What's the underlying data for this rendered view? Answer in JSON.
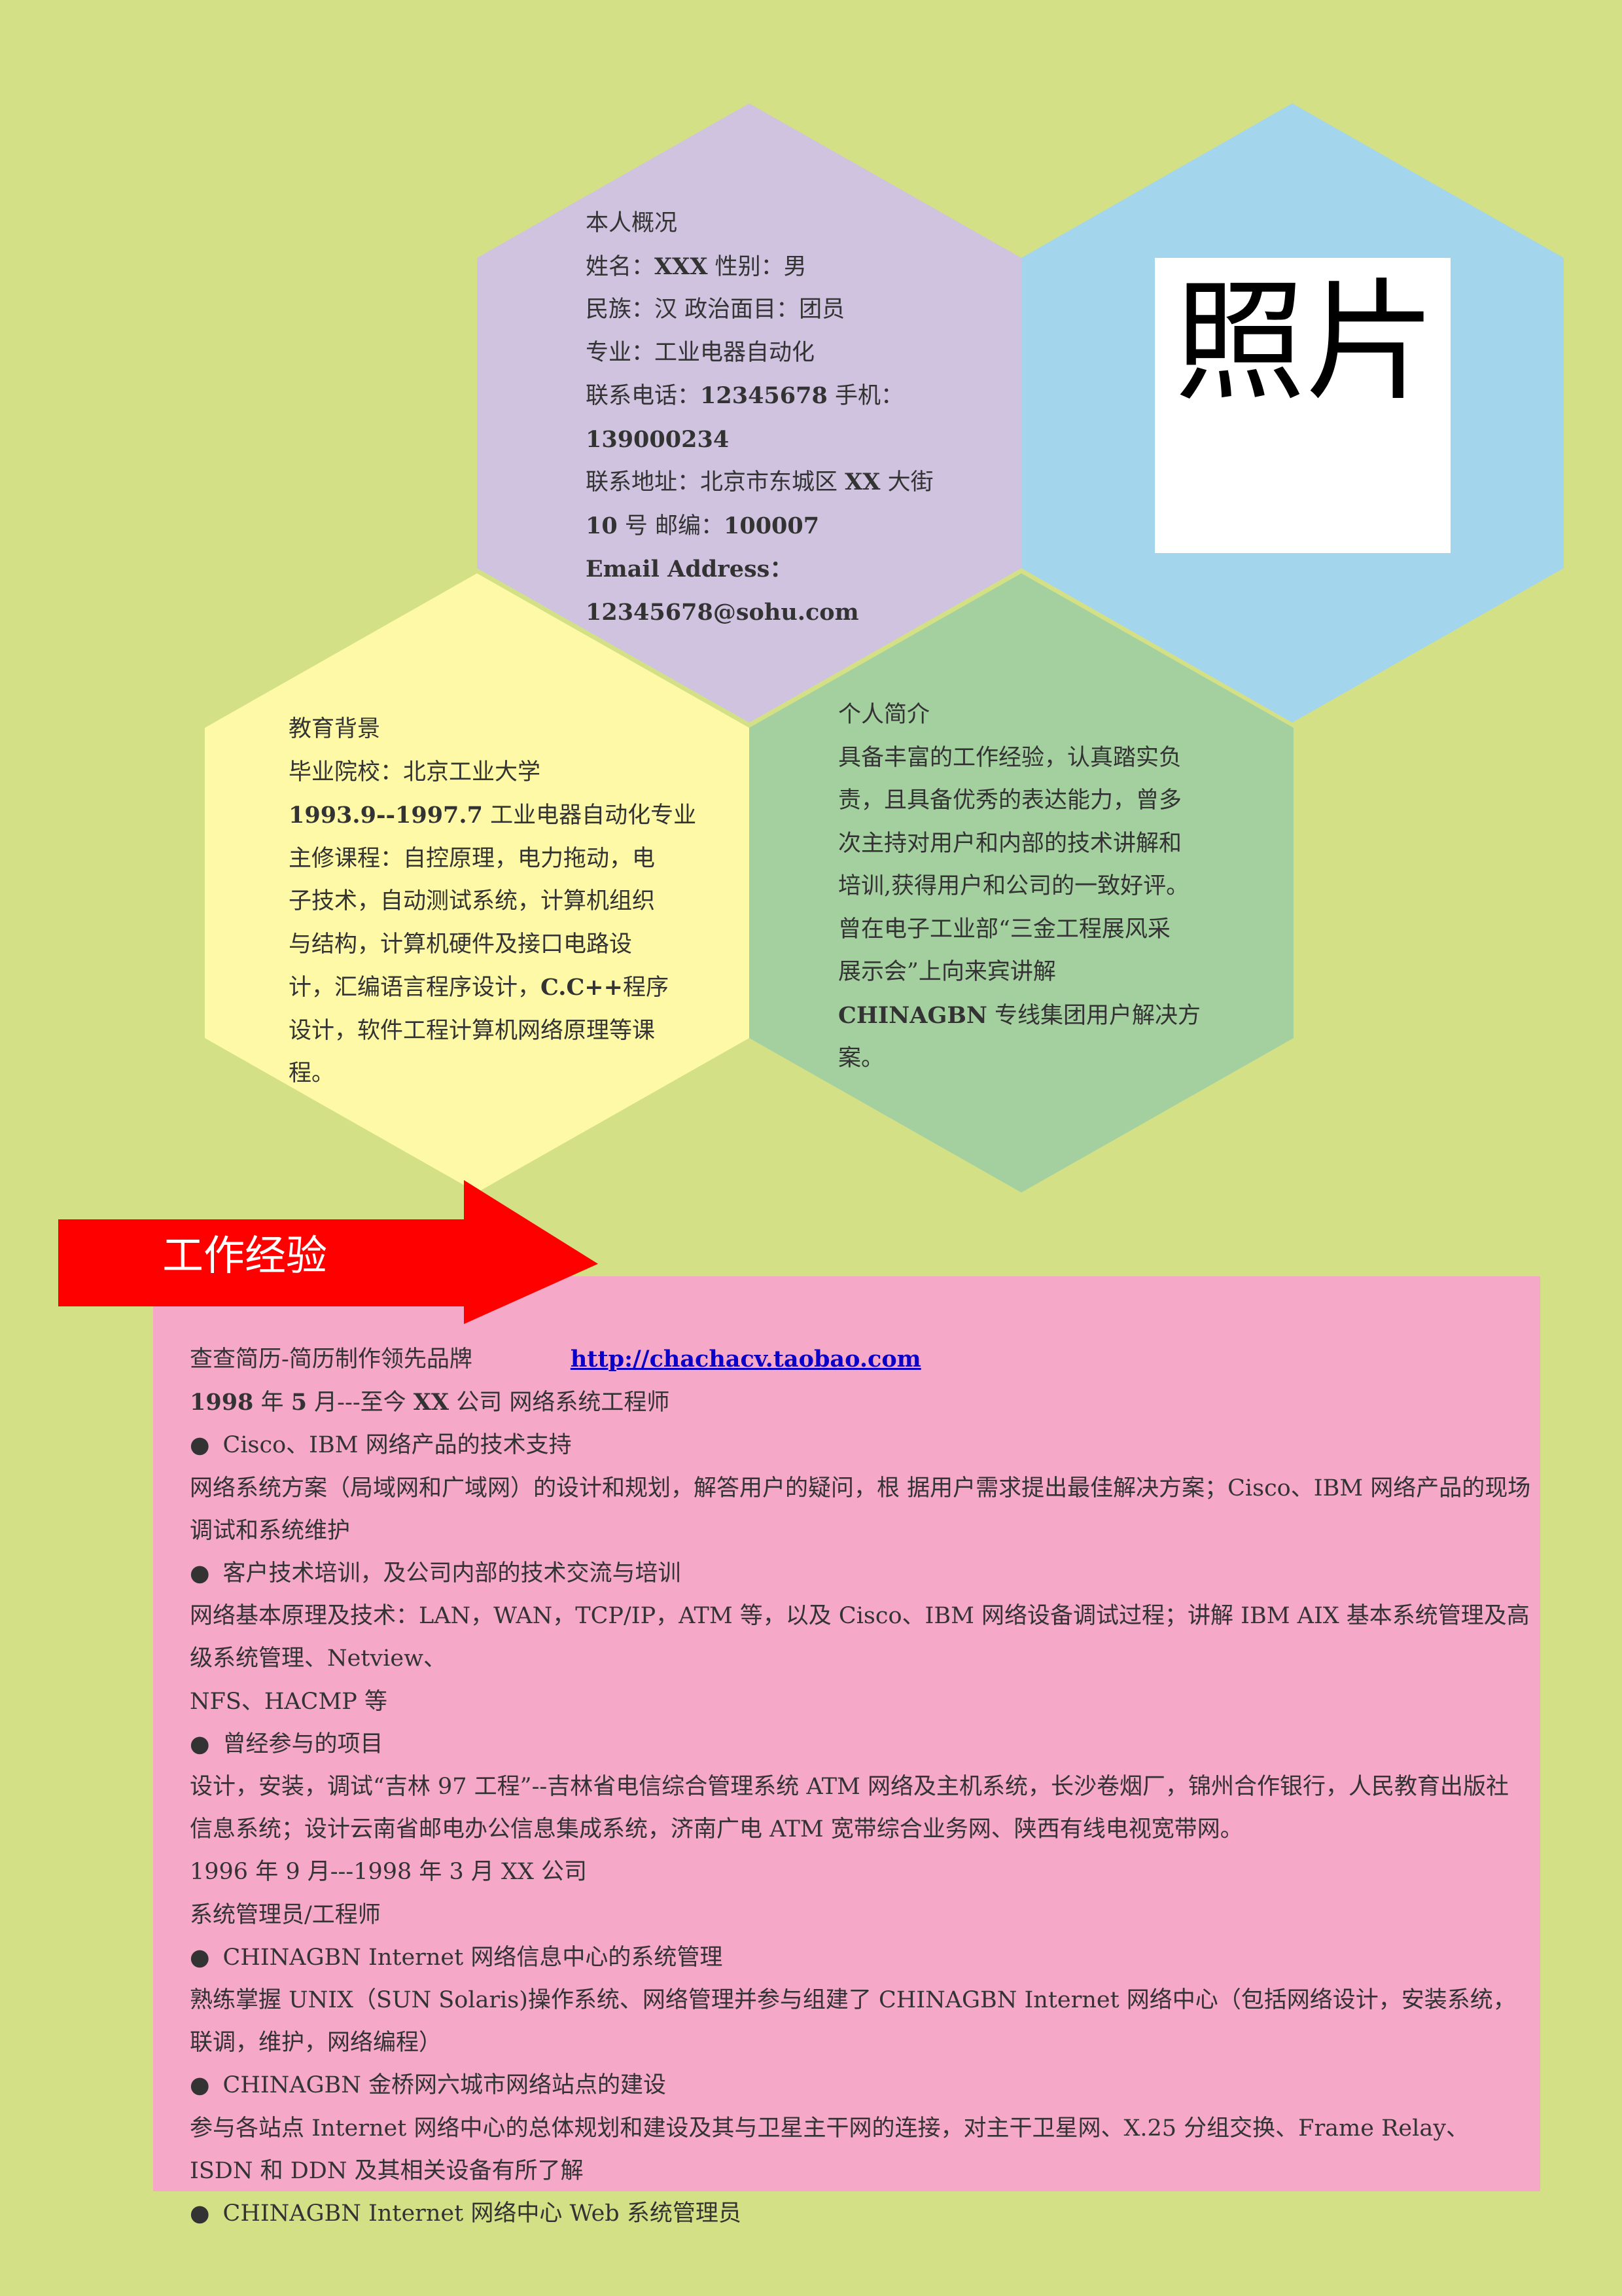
{
  "profile": {
    "heading": "本人概况",
    "name_label": "姓名：",
    "name_value": "XXX",
    "gender": "性别：男",
    "ethnic_politics": "民族：汉  政治面目：团员",
    "major": "专业：工业电器自动化",
    "phone_label": "联系电话：",
    "phone_value": "12345678",
    "mobile_label": "手机：",
    "mobile_value": "139000234",
    "address_line1_a": "联系地址：北京市东城区 ",
    "address_line1_b": "XX",
    "address_line1_c": " 大街",
    "address_line2_a": "10",
    "address_line2_b": " 号  邮编：",
    "address_line2_c": "100007",
    "email_label": "Email Address：",
    "email_value": "12345678@sohu.com"
  },
  "photo": {
    "label": "照片"
  },
  "education": {
    "heading": "教育背景",
    "school": "毕业院校：北京工业大学",
    "period": "1993.9--1997.7",
    "period_major": "  工业电器自动化专业",
    "courses": [
      "主修课程：自控原理，电力拖动，电",
      "子技术，自动测试系统，计算机组织",
      "与结构，计算机硬件及接口电路设",
      "计，汇编语言程序设计，",
      "设计，软件工程计算机网络原理等课",
      "程。"
    ],
    "courses_bold": "C.C++",
    "courses_tail": "程序"
  },
  "summary": {
    "heading": "个人简介",
    "lines": [
      "具备丰富的工作经验，认真踏实负",
      "责，且具备优秀的表达能力，曾多",
      "次主持对用户和内部的技术讲解和",
      "培训,获得用户和公司的一致好评。",
      "曾在电子工业部“三金工程展风采",
      "展示会”上向来宾讲解"
    ],
    "line7_bold": "CHINAGBN",
    "line7_tail": " 专线集团用户解决方",
    "line8": "案。"
  },
  "work_banner": {
    "title": "工作经验"
  },
  "work": {
    "brand_text": "查查简历-简历制作领先品牌",
    "brand_link": "http://chachacv.taobao.com",
    "job1_date_a": "1998",
    "job1_date_b": " 年 ",
    "job1_date_c": "5",
    "job1_date_d": " 月---至今  ",
    "job1_date_e": "XX",
    "job1_date_f": " 公司  网络系统工程师",
    "bullet1": "Cisco、IBM 网络产品的技术支持",
    "para1": "网络系统方案（局域网和广域网）的设计和规划，解答用户的疑问，根  据用户需求提出最佳解决方案；Cisco、IBM 网络产品的现场调试和系统维护",
    "bullet2": "客户技术培训，及公司内部的技术交流与培训",
    "para2": "网络基本原理及技术：LAN，WAN，TCP/IP，ATM 等，以及 Cisco、IBM  网络设备调试过程；讲解 IBM AIX 基本系统管理及高级系统管理、Netview、",
    "para2b": "NFS、HACMP 等",
    "bullet3": "曾经参与的项目",
    "para3": "设计，安装，调试“吉林 97 工程”--吉林省电信综合管理系统 ATM 网络及主机系统，长沙卷烟厂，锦州合作银行，人民教育出版社信息系统；设计云南省邮电办公信息集成系统，济南广电 ATM 宽带综合业务网、陕西有线电视宽带网。",
    "job2_date": "1996 年 9 月---1998 年 3 月  XX 公司",
    "job2_title": "系统管理员/工程师",
    "bullet4": "CHINAGBN Internet 网络信息中心的系统管理",
    "para4": "熟练掌握 UNIX（SUN Solaris)操作系统、网络管理并参与组建了 CHINAGBN Internet 网络中心（包括网络设计，安装系统，联调，维护，网络编程）",
    "bullet5": "CHINAGBN  金桥网六城市网络站点的建设",
    "para5": "参与各站点 Internet 网络中心的总体规划和建设及其与卫星主干网的连接，对主干卫星网、X.25 分组交换、Frame Relay、ISDN 和 DDN 及其相关设备有所了解",
    "bullet6": "CHINAGBN Internet 网络中心 Web 系统管理员"
  },
  "colors": {
    "background": "#d3e085",
    "profile_hex": "#cfc3df",
    "photo_hex": "#a3d5ed",
    "education_hex": "#fef9a6",
    "summary_hex": "#a4d0a0",
    "work_panel": "#f5a8c8",
    "arrow": "#ff0000"
  }
}
